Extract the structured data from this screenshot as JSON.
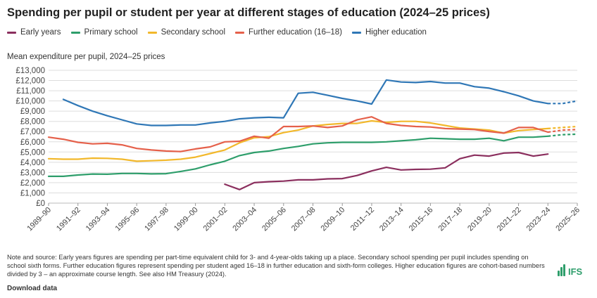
{
  "title": "Spending per pupil or student per year at different stages of education (2024–25 prices)",
  "y_axis_label": "Mean expenditure per pupil, 2024–25 prices",
  "notes": "Note and source: Early years figures are spending per part-time equivalent child for 3- and 4-year-olds taking up a place. Secondary school spending per pupil includes spending on school sixth forms. Further education figures represent spending per student aged 16–18 in further education and sixth-form colleges. Higher education figures are cohort-based numbers divided by 3 – an approximate course length. See also HM Treasury (2024).",
  "download_label": "Download data",
  "logo_text": "IFS",
  "colors": {
    "grid": "#dddddd",
    "axis_text": "#444444",
    "logo": "#2e9e6b"
  },
  "chart_data": {
    "type": "line",
    "title": "Spending per pupil or student per year at different stages of education (2024–25 prices)",
    "ylabel": "Mean expenditure per pupil, 2024–25 prices",
    "xlabel": "",
    "ylim": [
      0,
      13000
    ],
    "ytick_labels": [
      "£0",
      "£1,000",
      "£2,000",
      "£3,000",
      "£4,000",
      "£5,000",
      "£6,000",
      "£7,000",
      "£8,000",
      "£9,000",
      "£10,000",
      "£11,000",
      "£12,000",
      "£13,000"
    ],
    "x": [
      "1989–90",
      "1990–91",
      "1991–92",
      "1992–93",
      "1993–94",
      "1994–95",
      "1995–96",
      "1996–97",
      "1997–98",
      "1998–99",
      "1999–00",
      "2000–01",
      "2001–02",
      "2002–03",
      "2003–04",
      "2004–05",
      "2005–06",
      "2006–07",
      "2007–08",
      "2008–09",
      "2009–10",
      "2010–11",
      "2011–12",
      "2012–13",
      "2013–14",
      "2014–15",
      "2015–16",
      "2016–17",
      "2017–18",
      "2018–19",
      "2019–20",
      "2020–21",
      "2021–22",
      "2022–23",
      "2023–24",
      "2024–25",
      "2025–26"
    ],
    "xtick_labels": [
      "1989–90",
      "1991–92",
      "1993–94",
      "1995–96",
      "1997–98",
      "1999–00",
      "2001–02",
      "2003–04",
      "2005–06",
      "2007–08",
      "2009–10",
      "2011–12",
      "2013–14",
      "2015–16",
      "2017–18",
      "2019–20",
      "2021–22",
      "2023–24",
      "2025–26"
    ],
    "projection_start": "2023–24",
    "grid": true,
    "legend_position": "top",
    "series": [
      {
        "name": "Early years",
        "color": "#8b2f5e",
        "values": [
          null,
          null,
          null,
          null,
          null,
          null,
          null,
          null,
          null,
          null,
          null,
          null,
          1850,
          1330,
          2000,
          2100,
          2150,
          2280,
          2280,
          2370,
          2400,
          2700,
          3150,
          3500,
          3250,
          3300,
          3320,
          3450,
          4350,
          4700,
          4600,
          4900,
          4950,
          4600,
          4800,
          null,
          null
        ]
      },
      {
        "name": "Primary school",
        "color": "#2e9e6b",
        "values": [
          2620,
          2620,
          2750,
          2850,
          2830,
          2900,
          2900,
          2860,
          2880,
          3100,
          3350,
          3750,
          4100,
          4650,
          4950,
          5100,
          5350,
          5550,
          5800,
          5900,
          5950,
          5950,
          5950,
          6000,
          6100,
          6200,
          6350,
          6300,
          6250,
          6250,
          6350,
          6100,
          6450,
          6450,
          6550,
          6700,
          6750
        ]
      },
      {
        "name": "Secondary school",
        "color": "#f2b82b",
        "values": [
          4350,
          4300,
          4300,
          4400,
          4380,
          4300,
          4100,
          4150,
          4200,
          4300,
          4500,
          4850,
          5200,
          5900,
          6400,
          6500,
          6900,
          7150,
          7550,
          7700,
          7800,
          7800,
          8050,
          7900,
          8000,
          8000,
          7850,
          7600,
          7350,
          7250,
          7150,
          6850,
          7100,
          7200,
          7300,
          7400,
          7500
        ]
      },
      {
        "name": "Further education (16–18)",
        "color": "#e5604a",
        "values": [
          6450,
          6250,
          5950,
          5800,
          5850,
          5700,
          5350,
          5200,
          5100,
          5050,
          5300,
          5500,
          6000,
          6050,
          6550,
          6350,
          7500,
          7500,
          7550,
          7400,
          7550,
          8150,
          8450,
          7800,
          7600,
          7500,
          7450,
          7300,
          7250,
          7200,
          7000,
          6850,
          7400,
          7400,
          6950,
          7150,
          7200
        ]
      },
      {
        "name": "Higher education",
        "color": "#2f77b6",
        "values": [
          null,
          10150,
          9550,
          9000,
          8550,
          8150,
          7750,
          7600,
          7600,
          7650,
          7650,
          7850,
          8000,
          8250,
          8350,
          8400,
          8350,
          10750,
          10850,
          10550,
          10250,
          10000,
          9700,
          12050,
          11850,
          11800,
          11900,
          11750,
          11750,
          11400,
          11250,
          10900,
          10500,
          10000,
          9750,
          9750,
          10000
        ]
      }
    ]
  }
}
